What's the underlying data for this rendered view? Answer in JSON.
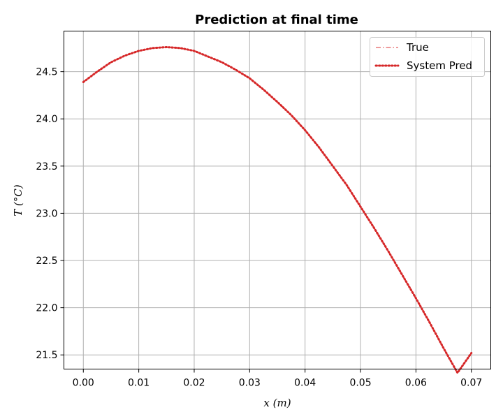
{
  "chart_data": {
    "type": "line",
    "title": "Prediction at final time",
    "xlabel": "x (m)",
    "ylabel": "T (°C)",
    "xlim": [
      -0.0035,
      0.0735
    ],
    "ylim": [
      21.35,
      24.93
    ],
    "xticks": [
      0.0,
      0.01,
      0.02,
      0.03,
      0.04,
      0.05,
      0.06,
      0.07
    ],
    "xtick_labels": [
      "0.00",
      "0.01",
      "0.02",
      "0.03",
      "0.04",
      "0.05",
      "0.06",
      "0.07"
    ],
    "yticks": [
      21.5,
      22.0,
      22.5,
      23.0,
      23.5,
      24.0,
      24.5
    ],
    "ytick_labels": [
      "21.5",
      "22.0",
      "22.5",
      "23.0",
      "23.5",
      "24.0",
      "24.5"
    ],
    "grid": true,
    "legend_position": "top-right",
    "x": [
      0.0,
      0.0025,
      0.005,
      0.0075,
      0.01,
      0.0125,
      0.015,
      0.0175,
      0.02,
      0.0225,
      0.025,
      0.0275,
      0.03,
      0.0325,
      0.035,
      0.0375,
      0.04,
      0.0425,
      0.045,
      0.0475,
      0.05,
      0.0525,
      0.055,
      0.0575,
      0.06,
      0.0625,
      0.065,
      0.0675,
      0.07
    ],
    "series": [
      {
        "name": "True",
        "color": "#e8787a",
        "style": "dashdot",
        "values": [
          24.39,
          24.5,
          24.6,
          24.67,
          24.72,
          24.75,
          24.76,
          24.75,
          24.72,
          24.66,
          24.6,
          24.52,
          24.43,
          24.31,
          24.18,
          24.04,
          23.88,
          23.7,
          23.5,
          23.3,
          23.07,
          22.84,
          22.6,
          22.35,
          22.1,
          21.84,
          21.57,
          21.31,
          21.52
        ],
        "values_note": ""
      },
      {
        "name": "System Pred",
        "color": "#d62728",
        "style": "dotted",
        "values": [
          24.39,
          24.5,
          24.6,
          24.67,
          24.72,
          24.75,
          24.76,
          24.75,
          24.72,
          24.66,
          24.6,
          24.52,
          24.43,
          24.31,
          24.18,
          24.04,
          23.88,
          23.7,
          23.5,
          23.3,
          23.07,
          22.84,
          22.6,
          22.35,
          22.1,
          21.84,
          21.57,
          21.31,
          21.52
        ]
      }
    ]
  }
}
